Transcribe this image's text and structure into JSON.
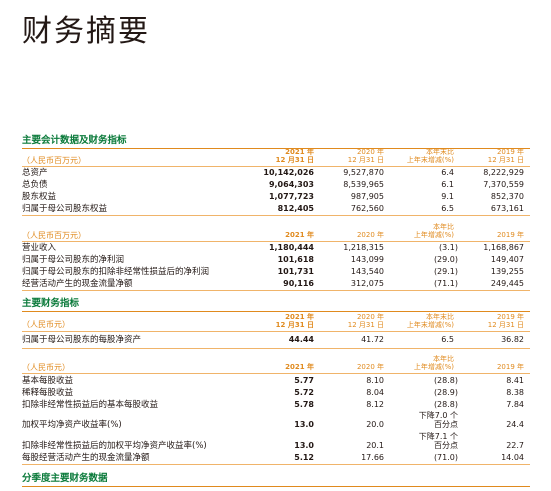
{
  "page_title": "财务摘要",
  "section1": {
    "title": "主要会计数据及财务指标",
    "block1": {
      "unit": "（人民币百万元）",
      "headers": [
        {
          "line1": "2021 年",
          "line2": "12 月31 日"
        },
        {
          "line1": "2020 年",
          "line2": "12 月31 日"
        },
        {
          "line1": "本年末比",
          "line2": "上年末增减(%)"
        },
        {
          "line1": "2019 年",
          "line2": "12 月31 日"
        }
      ],
      "rows": [
        {
          "label": "总资产",
          "v2021": "10,142,026",
          "v2020": "9,527,870",
          "change": "6.4",
          "v2019": "8,222,929"
        },
        {
          "label": "总负债",
          "v2021": "9,064,303",
          "v2020": "8,539,965",
          "change": "6.1",
          "v2019": "7,370,559"
        },
        {
          "label": "股东权益",
          "v2021": "1,077,723",
          "v2020": "987,905",
          "change": "9.1",
          "v2019": "852,370"
        },
        {
          "label": "归属于母公司股东权益",
          "v2021": "812,405",
          "v2020": "762,560",
          "change": "6.5",
          "v2019": "673,161"
        }
      ]
    },
    "block2": {
      "unit": "（人民币百万元）",
      "headers": [
        {
          "line1": "",
          "line2": "2021 年"
        },
        {
          "line1": "",
          "line2": "2020 年"
        },
        {
          "line1": "本年比",
          "line2": "上年增减(%)"
        },
        {
          "line1": "",
          "line2": "2019 年"
        }
      ],
      "rows": [
        {
          "label": "营业收入",
          "v2021": "1,180,444",
          "v2020": "1,218,315",
          "change": "(3.1)",
          "v2019": "1,168,867"
        },
        {
          "label": "归属于母公司股东的净利润",
          "v2021": "101,618",
          "v2020": "143,099",
          "change": "(29.0)",
          "v2019": "149,407"
        },
        {
          "label": "归属于母公司股东的扣除非经常性损益后的净利润",
          "v2021": "101,731",
          "v2020": "143,540",
          "change": "(29.1)",
          "v2019": "139,255"
        },
        {
          "label": "经营活动产生的现金流量净额",
          "v2021": "90,116",
          "v2020": "312,075",
          "change": "(71.1)",
          "v2019": "249,445"
        }
      ]
    }
  },
  "section2": {
    "title": "主要财务指标",
    "block1": {
      "unit": "（人民币元）",
      "headers": [
        {
          "line1": "2021 年",
          "line2": "12 月31 日"
        },
        {
          "line1": "2020 年",
          "line2": "12 月31 日"
        },
        {
          "line1": "本年末比",
          "line2": "上年末增减(%)"
        },
        {
          "line1": "2019 年",
          "line2": "12 月31 日"
        }
      ],
      "rows": [
        {
          "label": "归属于母公司股东的每股净资产",
          "v2021": "44.44",
          "v2020": "41.72",
          "change": "6.5",
          "v2019": "36.82"
        }
      ]
    },
    "block2": {
      "unit": "（人民币元）",
      "headers": [
        {
          "line1": "",
          "line2": "2021 年"
        },
        {
          "line1": "",
          "line2": "2020 年"
        },
        {
          "line1": "本年比",
          "line2": "上年增减(%)"
        },
        {
          "line1": "",
          "line2": "2019 年"
        }
      ],
      "rows": [
        {
          "label": "基本每股收益",
          "v2021": "5.77",
          "v2020": "8.10",
          "change": "(28.8)",
          "v2019": "8.41"
        },
        {
          "label": "稀释每股收益",
          "v2021": "5.72",
          "v2020": "8.04",
          "change": "(28.9)",
          "v2019": "8.38"
        },
        {
          "label": "扣除非经常性损益后的基本每股收益",
          "v2021": "5.78",
          "v2020": "8.12",
          "change": "(28.8)",
          "v2019": "7.84"
        }
      ],
      "rows_multi": [
        {
          "label": "加权平均净资产收益率(%)",
          "v2021": "13.0",
          "v2020": "20.0",
          "change_line1": "下降7.0 个",
          "change_line2": "百分点",
          "v2019": "24.4"
        },
        {
          "label": "扣除非经常性损益后的加权平均净资产收益率(%)",
          "v2021": "13.0",
          "v2020": "20.1",
          "change_line1": "下降7.1 个",
          "change_line2": "百分点",
          "v2019": "22.7"
        }
      ],
      "rows_tail": [
        {
          "label": "每股经营活动产生的现金流量净额",
          "v2021": "5.12",
          "v2020": "17.66",
          "change": "(71.0)",
          "v2019": "14.04"
        }
      ]
    }
  },
  "section3": {
    "title": "分季度主要财务数据"
  }
}
